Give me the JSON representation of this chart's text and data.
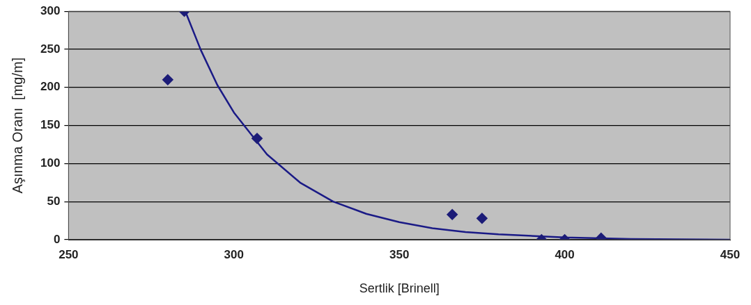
{
  "chart_data": {
    "type": "scatter",
    "xlabel": "Sertlik [Brinell]",
    "ylabel": "Aşınma Oranı  [mg/m]",
    "xlim": [
      250,
      450
    ],
    "xticks": [
      250,
      300,
      350,
      400,
      450
    ],
    "ylim": [
      0,
      300
    ],
    "yticks": [
      0,
      50,
      100,
      150,
      200,
      250,
      300
    ],
    "grid": "y",
    "marker": "diamond",
    "series": [
      {
        "color": "#1c1c78",
        "x": [
          280,
          285,
          307,
          366,
          375,
          393,
          400,
          411
        ],
        "values": [
          210,
          300,
          133,
          33,
          28,
          0,
          0,
          2
        ]
      },
      {
        "type": "line",
        "color": "#1a1a86",
        "marker": "none",
        "line_style": "solid",
        "x": [
          285.3,
          290,
          295,
          300,
          310,
          320,
          330,
          340,
          350,
          360,
          370,
          380,
          400,
          420,
          450
        ],
        "values": [
          300,
          249,
          203,
          167,
          112,
          75,
          50,
          34,
          23,
          15,
          10,
          7,
          3,
          1,
          0
        ]
      }
    ]
  }
}
